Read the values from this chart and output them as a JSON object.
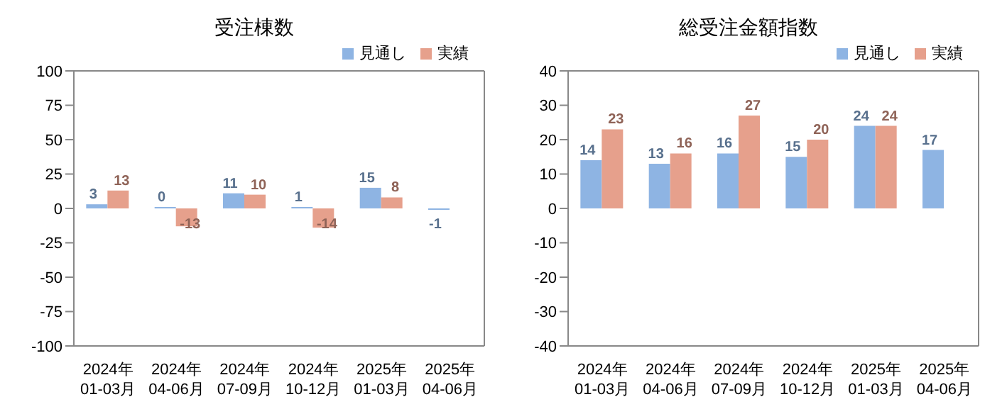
{
  "chart_data": [
    {
      "type": "bar",
      "title": "受注棟数",
      "categories": [
        "2024年\n01-03月",
        "2024年\n04-06月",
        "2024年\n07-09月",
        "2024年\n10-12月",
        "2025年\n01-03月",
        "2025年\n04-06月"
      ],
      "series": [
        {
          "name": "見通し",
          "color": "#8eb4e3",
          "values": [
            3,
            0,
            11,
            1,
            15,
            -1
          ]
        },
        {
          "name": "実績",
          "color": "#e6a08c",
          "values": [
            13,
            -13,
            10,
            -14,
            8,
            null
          ]
        }
      ],
      "ylim": [
        -100,
        100
      ],
      "yticks": [
        -100,
        -75,
        -50,
        -25,
        0,
        25,
        50,
        75,
        100
      ],
      "grid": false,
      "legend": "top right",
      "data_labels": true
    },
    {
      "type": "bar",
      "title": "総受注金額指数",
      "categories": [
        "2024年\n01-03月",
        "2024年\n04-06月",
        "2024年\n07-09月",
        "2024年\n10-12月",
        "2025年\n01-03月",
        "2025年\n04-06月"
      ],
      "series": [
        {
          "name": "見通し",
          "color": "#8eb4e3",
          "values": [
            14,
            13,
            16,
            15,
            24,
            17
          ]
        },
        {
          "name": "実績",
          "color": "#e6a08c",
          "values": [
            23,
            16,
            27,
            20,
            24,
            null
          ]
        }
      ],
      "ylim": [
        -40,
        40
      ],
      "yticks": [
        -40,
        -30,
        -20,
        -10,
        0,
        10,
        20,
        30,
        40
      ],
      "grid": false,
      "legend": "top right",
      "data_labels": true
    }
  ]
}
